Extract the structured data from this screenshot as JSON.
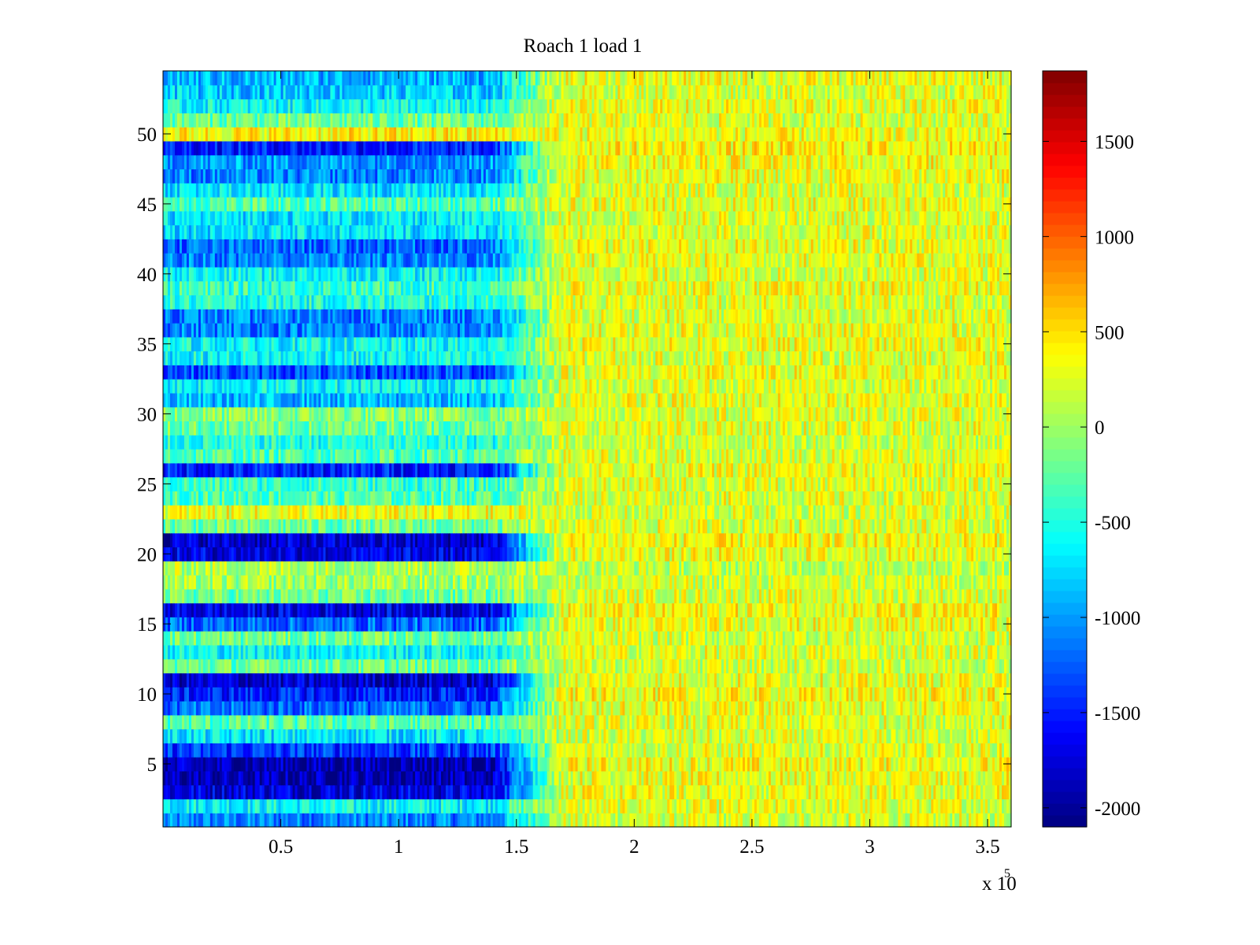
{
  "chart_data": {
    "type": "heatmap",
    "title": "Roach 1 load 1",
    "xlabel": "",
    "ylabel": "",
    "x_range": [
      0,
      360000
    ],
    "y_range": [
      0.5,
      54.5
    ],
    "rows": 54,
    "x_ticks": [
      {
        "value": 50000,
        "label": "0.5"
      },
      {
        "value": 100000,
        "label": "1"
      },
      {
        "value": 150000,
        "label": "1.5"
      },
      {
        "value": 200000,
        "label": "2"
      },
      {
        "value": 250000,
        "label": "2.5"
      },
      {
        "value": 300000,
        "label": "3"
      },
      {
        "value": 350000,
        "label": "3.5"
      }
    ],
    "x_exponent": {
      "base": "x 10",
      "power": "5"
    },
    "y_ticks": [
      {
        "value": 5,
        "label": "5"
      },
      {
        "value": 10,
        "label": "10"
      },
      {
        "value": 15,
        "label": "15"
      },
      {
        "value": 20,
        "label": "20"
      },
      {
        "value": 25,
        "label": "25"
      },
      {
        "value": 30,
        "label": "30"
      },
      {
        "value": 35,
        "label": "35"
      },
      {
        "value": 40,
        "label": "40"
      },
      {
        "value": 45,
        "label": "45"
      },
      {
        "value": 50,
        "label": "50"
      }
    ],
    "colorbar": {
      "colormap": "jet",
      "range": [
        -2100,
        1870
      ],
      "ticks": [
        {
          "value": 1500,
          "label": "1500"
        },
        {
          "value": 1000,
          "label": "1000"
        },
        {
          "value": 500,
          "label": "500"
        },
        {
          "value": 0,
          "label": "0"
        },
        {
          "value": -500,
          "label": "-500"
        },
        {
          "value": -1000,
          "label": "-1000"
        },
        {
          "value": -1500,
          "label": "-1500"
        },
        {
          "value": -2000,
          "label": "-2000"
        }
      ]
    },
    "transition_x": 165000,
    "late_mean_value": 250,
    "row_early_values": [
      -1100,
      -600,
      -1700,
      -1900,
      -1900,
      -1400,
      -700,
      -300,
      -1200,
      -1500,
      -1800,
      -200,
      -600,
      -200,
      -1200,
      -1700,
      -200,
      0,
      100,
      -1700,
      -1800,
      -200,
      300,
      -300,
      -400,
      -1500,
      -300,
      -500,
      -200,
      -100,
      -900,
      -600,
      -1300,
      -600,
      -600,
      -1100,
      -1100,
      -500,
      -400,
      -600,
      -1100,
      -1200,
      -700,
      -700,
      -300,
      -700,
      -1100,
      -1000,
      -1500,
      400,
      -200,
      -600,
      -800,
      -900
    ],
    "row_late_values": [
      200,
      250,
      300,
      300,
      350,
      250,
      200,
      250,
      300,
      350,
      300,
      200,
      250,
      200,
      300,
      350,
      250,
      200,
      150,
      300,
      350,
      250,
      200,
      250,
      250,
      300,
      250,
      200,
      250,
      250,
      300,
      250,
      300,
      250,
      300,
      300,
      250,
      250,
      300,
      250,
      300,
      300,
      250,
      250,
      300,
      250,
      300,
      350,
      400,
      300,
      250,
      300,
      250,
      300
    ]
  }
}
